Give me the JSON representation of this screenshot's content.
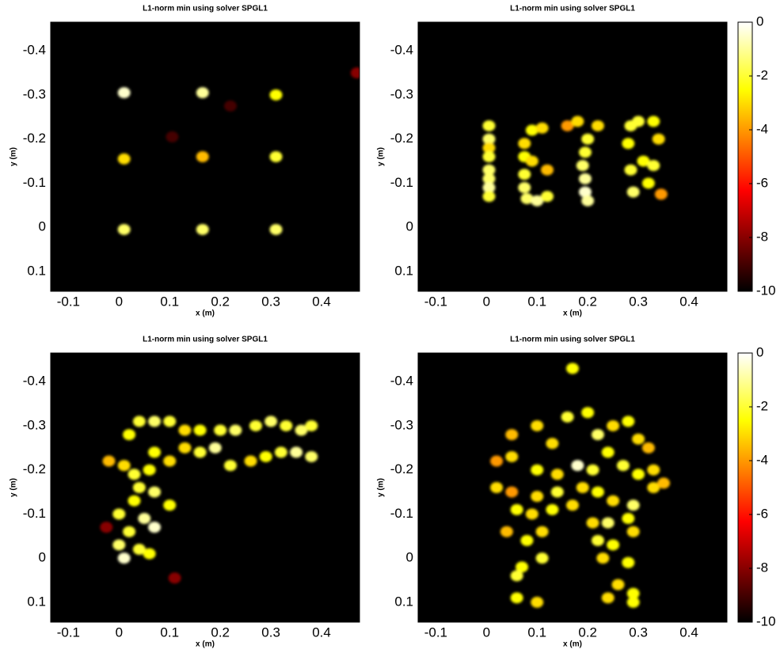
{
  "chart_data": [
    {
      "type": "heatmap",
      "title": "L1-norm min using solver SPGL1",
      "xlabel": "x (m)",
      "ylabel": "y (m)",
      "xlim": [
        -0.135,
        0.475
      ],
      "ylim": [
        -0.465,
        0.145
      ],
      "xticks": [
        -0.1,
        0,
        0.1,
        0.2,
        0.3,
        0.4
      ],
      "yticks": [
        -0.4,
        -0.3,
        -0.2,
        -0.1,
        0,
        0.1
      ],
      "colormap": "hot",
      "clim": [
        -10,
        0
      ],
      "colorbar": false,
      "x": [
        0.01,
        0.165,
        0.31,
        0.01,
        0.165,
        0.31,
        0.01,
        0.165,
        0.31,
        0.47,
        0.22,
        0.105
      ],
      "y": [
        -0.305,
        -0.305,
        -0.3,
        -0.155,
        -0.16,
        -0.16,
        0.005,
        0.005,
        0.005,
        -0.35,
        -0.275,
        -0.205
      ],
      "values": [
        -0.5,
        -1,
        -2.5,
        -3,
        -3.5,
        -2,
        -1.5,
        -1.5,
        -1.5,
        -8,
        -9,
        -9
      ]
    },
    {
      "type": "heatmap",
      "title": "L1-norm min using solver SPGL1",
      "xlabel": "x (m)",
      "ylabel": "y (m)",
      "xlim": [
        -0.135,
        0.475
      ],
      "ylim": [
        -0.465,
        0.145
      ],
      "xticks": [
        -0.1,
        0,
        0.1,
        0.2,
        0.3,
        0.4
      ],
      "yticks": [
        -0.4,
        -0.3,
        -0.2,
        -0.1,
        0,
        0.1
      ],
      "colormap": "hot",
      "clim": [
        -10,
        0
      ],
      "colorbar": true,
      "cticks": [
        0,
        -2,
        -4,
        -6,
        -8,
        -10
      ],
      "x": [
        0.005,
        0.005,
        0.005,
        0.005,
        0.005,
        0.005,
        0.005,
        0.005,
        0.075,
        0.075,
        0.075,
        0.075,
        0.09,
        0.11,
        0.12,
        0.09,
        0.08,
        0.1,
        0.12,
        0.16,
        0.18,
        0.2,
        0.22,
        0.195,
        0.19,
        0.195,
        0.195,
        0.2,
        0.285,
        0.28,
        0.285,
        0.29,
        0.3,
        0.33,
        0.34,
        0.31,
        0.33,
        0.32,
        0.345
      ],
      "y": [
        -0.23,
        -0.2,
        -0.18,
        -0.16,
        -0.13,
        -0.11,
        -0.09,
        -0.07,
        -0.19,
        -0.16,
        -0.12,
        -0.09,
        -0.22,
        -0.225,
        -0.13,
        -0.15,
        -0.065,
        -0.06,
        -0.07,
        -0.23,
        -0.24,
        -0.2,
        -0.23,
        -0.17,
        -0.14,
        -0.11,
        -0.08,
        -0.06,
        -0.23,
        -0.19,
        -0.13,
        -0.08,
        -0.24,
        -0.24,
        -0.2,
        -0.15,
        -0.14,
        -0.1,
        -0.075
      ],
      "values": [
        -2,
        -1.5,
        -3,
        -2,
        -1.5,
        -1.5,
        -1,
        -2,
        -3,
        -2.5,
        -2,
        -1.5,
        -2.5,
        -3,
        -3.5,
        -3,
        -1.5,
        -1,
        -2,
        -4,
        -3,
        -2,
        -3,
        -2,
        -1.5,
        -1,
        -0.5,
        -1,
        -2,
        -2.5,
        -2,
        -1.5,
        -2,
        -2.5,
        -3,
        -2.5,
        -2,
        -2.5,
        -4
      ]
    },
    {
      "type": "heatmap",
      "title": "L1-norm min using solver SPGL1",
      "xlabel": "x (m)",
      "ylabel": "y (m)",
      "xlim": [
        -0.135,
        0.475
      ],
      "ylim": [
        -0.465,
        0.145
      ],
      "xticks": [
        -0.1,
        0,
        0.1,
        0.2,
        0.3,
        0.4
      ],
      "yticks": [
        -0.4,
        -0.3,
        -0.2,
        -0.1,
        0,
        0.1
      ],
      "colormap": "hot",
      "clim": [
        -10,
        0
      ],
      "colorbar": false,
      "x": [
        0.02,
        0.04,
        0.07,
        0.1,
        0.13,
        0.16,
        0.2,
        0.23,
        0.27,
        0.3,
        0.33,
        0.36,
        0.38,
        0.07,
        0.1,
        0.13,
        0.16,
        0.19,
        0.22,
        0.26,
        0.29,
        0.32,
        0.35,
        0.38,
        -0.02,
        0.01,
        0.03,
        0.06,
        0.04,
        0.07,
        0.03,
        0.1,
        0.0,
        0.05,
        0.07,
        0.02,
        0.0,
        0.04,
        0.06,
        0.01,
        -0.025,
        0.11
      ],
      "y": [
        -0.28,
        -0.31,
        -0.31,
        -0.31,
        -0.29,
        -0.29,
        -0.29,
        -0.29,
        -0.3,
        -0.31,
        -0.3,
        -0.29,
        -0.3,
        -0.24,
        -0.22,
        -0.25,
        -0.24,
        -0.25,
        -0.21,
        -0.22,
        -0.23,
        -0.24,
        -0.24,
        -0.23,
        -0.22,
        -0.21,
        -0.19,
        -0.2,
        -0.16,
        -0.15,
        -0.13,
        -0.12,
        -0.1,
        -0.09,
        -0.07,
        -0.06,
        -0.03,
        -0.02,
        -0.01,
        0.0,
        -0.07,
        0.045
      ],
      "values": [
        -2.5,
        -2,
        -1.5,
        -2,
        -3,
        -2.5,
        -2,
        -1.5,
        -2,
        -1.5,
        -2,
        -1.5,
        -2,
        -2.5,
        -3,
        -3,
        -2,
        -1,
        -2,
        -3,
        -2.5,
        -2,
        -1,
        -1.5,
        -3.5,
        -3,
        -2,
        -2.5,
        -2,
        -1.5,
        -2.5,
        -2.5,
        -2,
        -1,
        -0.5,
        -2,
        -1.5,
        -2,
        -2.5,
        -0.5,
        -8,
        -8
      ]
    },
    {
      "type": "heatmap",
      "title": "L1-norm min using solver SPGL1",
      "xlabel": "x (m)",
      "ylabel": "y (m)",
      "xlim": [
        -0.135,
        0.475
      ],
      "ylim": [
        -0.465,
        0.145
      ],
      "xticks": [
        -0.1,
        0,
        0.1,
        0.2,
        0.3,
        0.4
      ],
      "yticks": [
        -0.4,
        -0.3,
        -0.2,
        -0.1,
        0,
        0.1
      ],
      "colormap": "hot",
      "clim": [
        -10,
        0
      ],
      "colorbar": true,
      "cticks": [
        0,
        -2,
        -4,
        -6,
        -8,
        -10
      ],
      "x": [
        0.17,
        0.05,
        0.1,
        0.13,
        0.16,
        0.2,
        0.22,
        0.25,
        0.28,
        0.3,
        0.32,
        0.02,
        0.05,
        0.1,
        0.14,
        0.18,
        0.21,
        0.24,
        0.27,
        0.3,
        0.33,
        0.02,
        0.05,
        0.1,
        0.14,
        0.19,
        0.22,
        0.25,
        0.29,
        0.33,
        0.35,
        0.06,
        0.09,
        0.13,
        0.17,
        0.21,
        0.24,
        0.28,
        0.04,
        0.08,
        0.11,
        0.22,
        0.25,
        0.29,
        0.07,
        0.11,
        0.23,
        0.28,
        0.06,
        0.26,
        0.29,
        0.06,
        0.1,
        0.24,
        0.29
      ],
      "y": [
        -0.43,
        -0.28,
        -0.3,
        -0.26,
        -0.32,
        -0.33,
        -0.28,
        -0.3,
        -0.31,
        -0.27,
        -0.25,
        -0.22,
        -0.23,
        -0.2,
        -0.19,
        -0.21,
        -0.2,
        -0.24,
        -0.21,
        -0.19,
        -0.2,
        -0.16,
        -0.15,
        -0.14,
        -0.15,
        -0.16,
        -0.15,
        -0.13,
        -0.12,
        -0.16,
        -0.17,
        -0.11,
        -0.1,
        -0.11,
        -0.12,
        -0.08,
        -0.08,
        -0.09,
        -0.06,
        -0.04,
        -0.06,
        -0.04,
        -0.03,
        -0.06,
        0.02,
        0.0,
        0.0,
        0.01,
        0.04,
        0.06,
        0.08,
        0.09,
        0.1,
        0.09,
        0.1
      ],
      "values": [
        -2.5,
        -3.5,
        -3,
        -3,
        -2,
        -2.5,
        -1.5,
        -3,
        -2.5,
        -3,
        -3.5,
        -4,
        -3,
        -2.5,
        -3,
        -0.5,
        -2,
        -2.5,
        -2,
        -2.5,
        -3,
        -3,
        -4,
        -3,
        -2,
        -3,
        -2.5,
        -3,
        -1.5,
        -3,
        -3.5,
        -2.5,
        -3,
        -2.5,
        -3,
        -3,
        -1.5,
        -2.5,
        -3.5,
        -2.5,
        -3,
        -2,
        -2.5,
        -3,
        -2.5,
        -2,
        -3,
        -2.5,
        -2,
        -3,
        -2.5,
        -2.5,
        -3,
        -3,
        -2.5
      ]
    }
  ]
}
